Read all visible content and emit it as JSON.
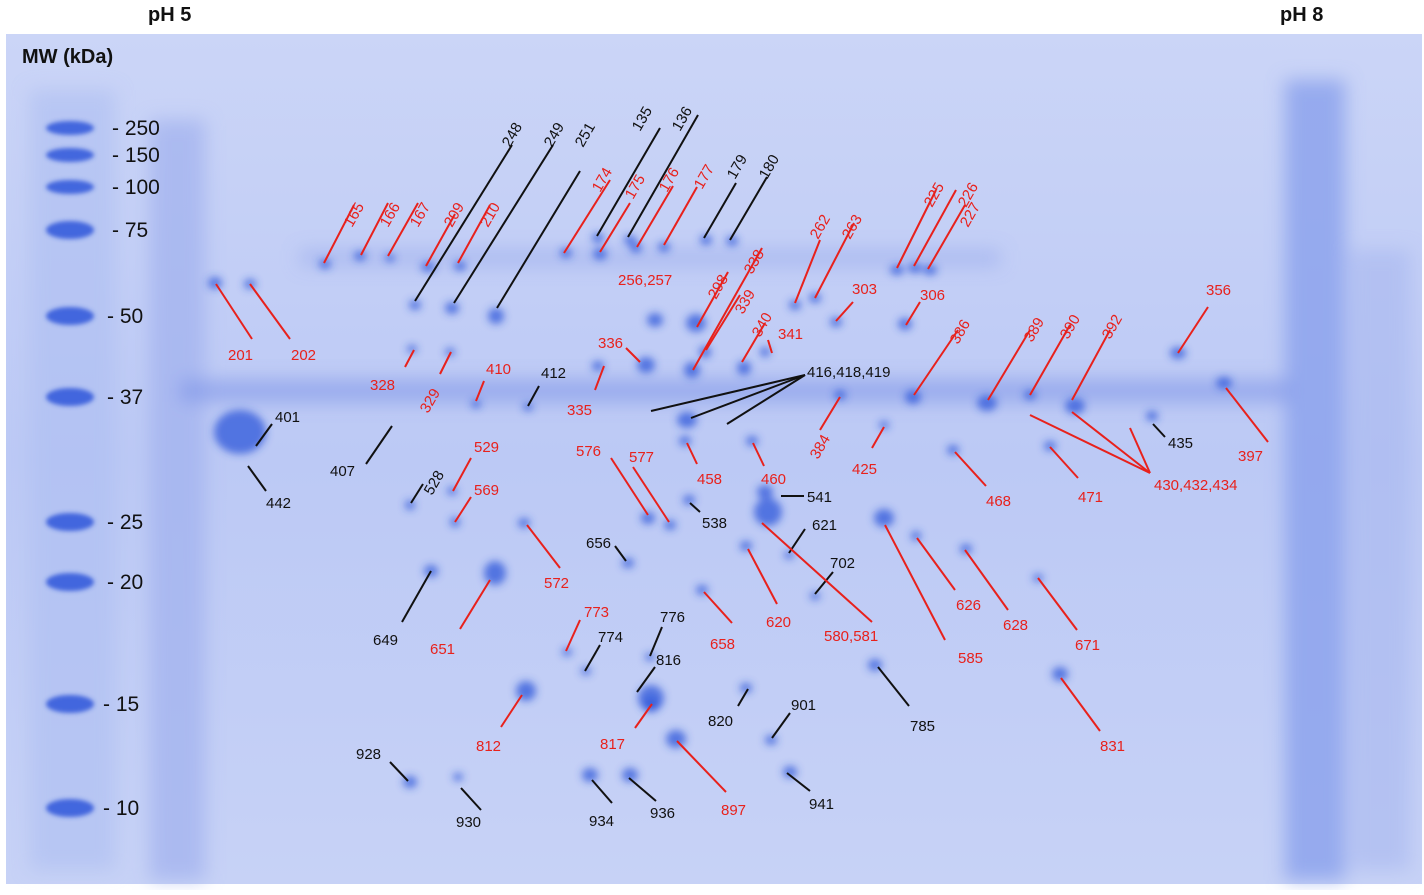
{
  "header": {
    "ph_left": "pH 5",
    "ph_right": "pH 8",
    "mw_title": "MW (kDa)"
  },
  "colors": {
    "gel": "#b9c6f4",
    "stain": "#2f55d9",
    "red_label": "#e8211c",
    "black_label": "#111111"
  },
  "markers": [
    "- 250",
    "- 150",
    "- 100",
    "- 75",
    "- 50",
    "- 37",
    "- 25",
    "- 20",
    "- 15",
    "- 10"
  ],
  "spot_labels": [
    "165",
    "166",
    "167",
    "209",
    "210",
    "248",
    "249",
    "251",
    "135",
    "136",
    "174",
    "175",
    "176",
    "177",
    "179",
    "180",
    "262",
    "263",
    "225",
    "226",
    "227",
    "256,257",
    "298",
    "338",
    "339",
    "340",
    "341",
    "303",
    "306",
    "356",
    "201",
    "202",
    "328",
    "329",
    "410",
    "412",
    "336",
    "335",
    "416,418,419",
    "386",
    "389",
    "390",
    "392",
    "384",
    "425",
    "397",
    "401",
    "442",
    "407",
    "528",
    "529",
    "569",
    "576",
    "577",
    "458",
    "460",
    "541",
    "538",
    "468",
    "471",
    "430,432,434",
    "435",
    "621",
    "656",
    "572",
    "702",
    "649",
    "651",
    "773",
    "776",
    "774",
    "658",
    "620",
    "580,581",
    "626",
    "628",
    "585",
    "671",
    "816",
    "812",
    "817",
    "820",
    "901",
    "785",
    "831",
    "928",
    "930",
    "934",
    "936",
    "897",
    "941"
  ]
}
